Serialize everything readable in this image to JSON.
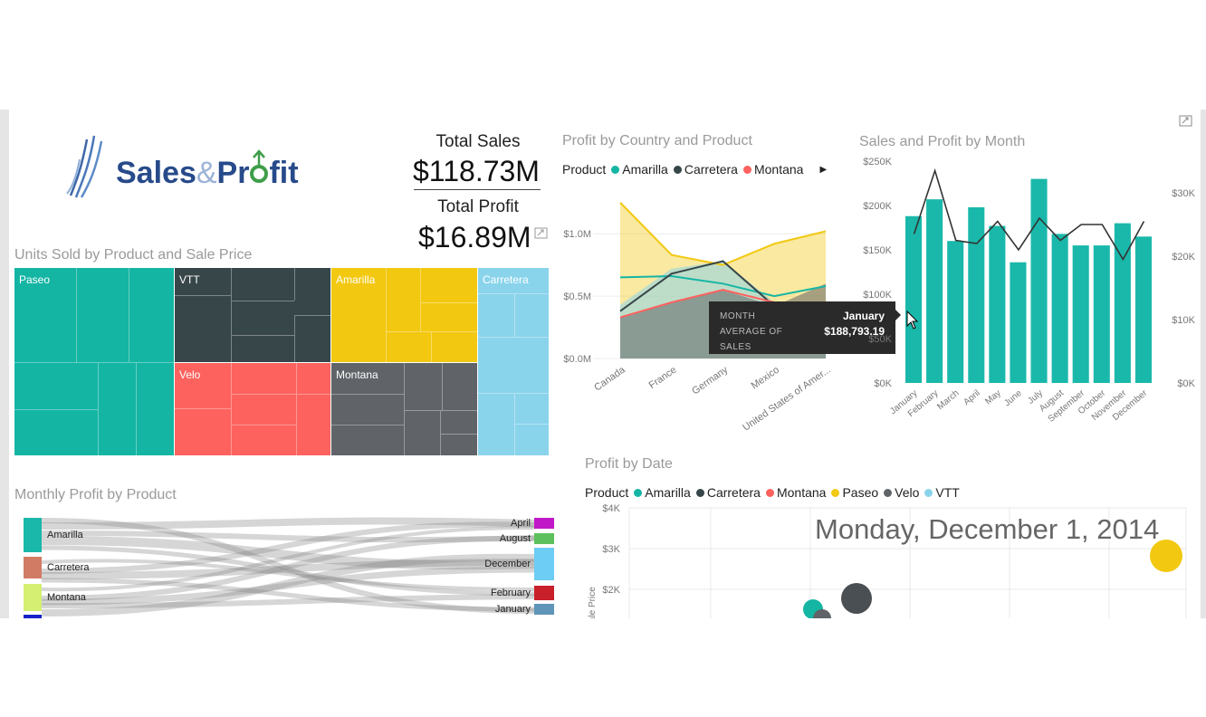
{
  "logo": {
    "text_a": "Sales",
    "text_amp": "&",
    "text_b": "Pr",
    "text_c": "fit"
  },
  "kpi": {
    "total_sales_label": "Total Sales",
    "total_sales_value": "$118.73M",
    "total_profit_label": "Total Profit",
    "total_profit_value": "$16.89M"
  },
  "colors": {
    "Amarilla": "#f2c811",
    "Carretera": "#8ad4eb",
    "Montana": "#606468",
    "Paseo": "#15b5a4",
    "Velo": "#fd625e",
    "VTT": "#374649",
    "teal": "#1ab8aa",
    "dark": "#374649",
    "red": "#fd625e",
    "yellow": "#f2c811",
    "gray": "#606468",
    "lightblue": "#8ad4eb"
  },
  "treemap": {
    "title": "Units Sold by Product and Sale Price",
    "labels": {
      "paseo": "Paseo",
      "vtt": "VTT",
      "amarilla": "Amarilla",
      "carretera": "Carretera",
      "velo": "Velo",
      "montana": "Montana"
    }
  },
  "area_chart": {
    "title": "Profit by Country and Product",
    "legend_title": "Product",
    "legend": [
      "Amarilla",
      "Carretera",
      "Montana"
    ],
    "y_ticks": [
      "$1.0M",
      "$0.5M",
      "$0.0M"
    ],
    "x_ticks": [
      "Canada",
      "France",
      "Germany",
      "Mexico",
      "United States of Amer..."
    ]
  },
  "tooltip": {
    "k1": "MONTH",
    "v1": "January",
    "k2": "AVERAGE OF SALES",
    "v2": "$188,793.19"
  },
  "combo_chart": {
    "title": "Sales and Profit by Month",
    "y_left_ticks": [
      "$250K",
      "$200K",
      "$150K",
      "$100K",
      "$50K",
      "$0K"
    ],
    "y_right_ticks": [
      "$30K",
      "$20K",
      "$10K",
      "$0K"
    ],
    "months": [
      "January",
      "February",
      "March",
      "April",
      "May",
      "June",
      "July",
      "August",
      "September",
      "October",
      "November",
      "December"
    ]
  },
  "sankey": {
    "title": "Monthly Profit by Product",
    "left_nodes": [
      "Amarilla",
      "Carretera",
      "Montana"
    ],
    "right_nodes": [
      "April",
      "August",
      "December",
      "February",
      "January"
    ]
  },
  "bubble_chart": {
    "title": "Profit by Date",
    "legend_title": "Product",
    "legend": [
      "Amarilla",
      "Carretera",
      "Montana",
      "Paseo",
      "Velo",
      "VTT"
    ],
    "y_ticks": [
      "$4K",
      "$3K",
      "$2K"
    ],
    "y_label": "Sale Price",
    "date_header": "Monday, December 1, 2014"
  },
  "chart_data": [
    {
      "type": "area",
      "title": "Profit by Country and Product",
      "categories": [
        "Canada",
        "France",
        "Germany",
        "Mexico",
        "United States of Amer..."
      ],
      "ylim": [
        0,
        1.2
      ],
      "y_unit": "$M",
      "series": [
        {
          "name": "Amarilla",
          "values": [
            1.25,
            0.83,
            0.75,
            0.92,
            1.02
          ]
        },
        {
          "name": "Carretera",
          "values": [
            0.43,
            0.72,
            0.78,
            0.45,
            0.38
          ]
        },
        {
          "name": "Montana",
          "values": [
            0.33,
            0.45,
            0.55,
            0.42,
            0.6
          ]
        }
      ]
    },
    {
      "type": "bar",
      "title": "Sales and Profit by Month",
      "categories": [
        "January",
        "February",
        "March",
        "April",
        "May",
        "June",
        "July",
        "August",
        "September",
        "October",
        "November",
        "December"
      ],
      "ylim": [
        0,
        250
      ],
      "y_unit": "$K",
      "series": [
        {
          "name": "Sales",
          "values": [
            188,
            207,
            160,
            198,
            177,
            136,
            230,
            168,
            155,
            155,
            180,
            165
          ]
        },
        {
          "name": "Profit",
          "axis": "right",
          "ylim": [
            0,
            35
          ],
          "values": [
            23.5,
            33.5,
            22.5,
            22.0,
            25.5,
            21.0,
            26.0,
            22.5,
            25.0,
            25.0,
            19.5,
            25.5
          ]
        }
      ]
    }
  ]
}
